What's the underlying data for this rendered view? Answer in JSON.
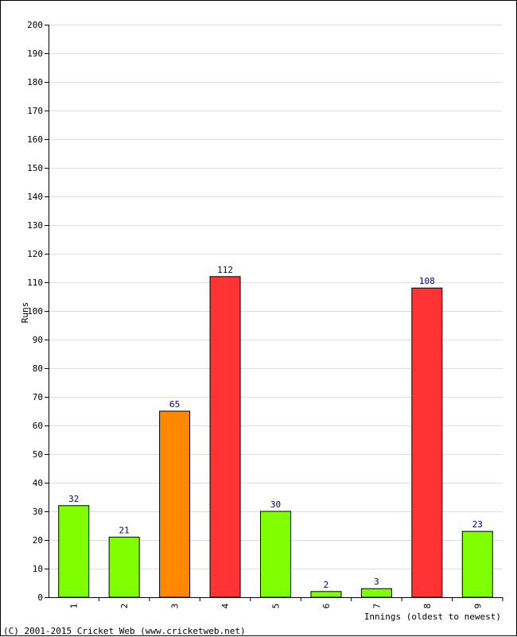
{
  "chart_data": {
    "type": "bar",
    "title": "",
    "xlabel": "Innings (oldest to newest)",
    "ylabel": "Runs",
    "ylim": [
      0,
      200
    ],
    "ytick_step": 10,
    "grid": true,
    "categories": [
      "1",
      "2",
      "3",
      "4",
      "5",
      "6",
      "7",
      "8",
      "9"
    ],
    "values": [
      32,
      21,
      65,
      112,
      30,
      2,
      3,
      108,
      23
    ],
    "bar_colors": [
      "#80ff00",
      "#80ff00",
      "#ff8800",
      "#ff3333",
      "#80ff00",
      "#80ff00",
      "#80ff00",
      "#ff3333",
      "#80ff00"
    ]
  },
  "footer": {
    "copyright": "(C) 2001-2015 Cricket Web (www.cricketweb.net)"
  }
}
